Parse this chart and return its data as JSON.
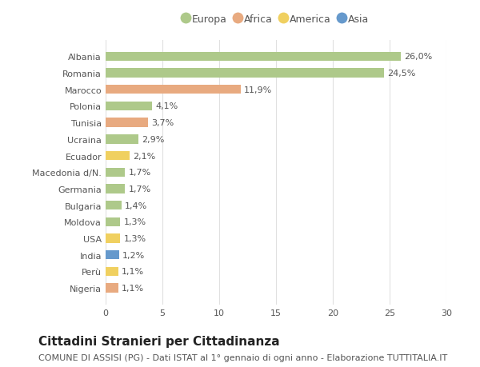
{
  "countries": [
    "Albania",
    "Romania",
    "Marocco",
    "Polonia",
    "Tunisia",
    "Ucraina",
    "Ecuador",
    "Macedonia d/N.",
    "Germania",
    "Bulgaria",
    "Moldova",
    "USA",
    "India",
    "Perù",
    "Nigeria"
  ],
  "values": [
    26.0,
    24.5,
    11.9,
    4.1,
    3.7,
    2.9,
    2.1,
    1.7,
    1.7,
    1.4,
    1.3,
    1.3,
    1.2,
    1.1,
    1.1
  ],
  "labels": [
    "26,0%",
    "24,5%",
    "11,9%",
    "4,1%",
    "3,7%",
    "2,9%",
    "2,1%",
    "1,7%",
    "1,7%",
    "1,4%",
    "1,3%",
    "1,3%",
    "1,2%",
    "1,1%",
    "1,1%"
  ],
  "continents": [
    "Europa",
    "Europa",
    "Africa",
    "Europa",
    "Africa",
    "Europa",
    "America",
    "Europa",
    "Europa",
    "Europa",
    "Europa",
    "America",
    "Asia",
    "America",
    "Africa"
  ],
  "continent_colors": {
    "Europa": "#aec98a",
    "Africa": "#e8aa80",
    "America": "#f0d060",
    "Asia": "#6699cc"
  },
  "legend_order": [
    "Europa",
    "Africa",
    "America",
    "Asia"
  ],
  "background_color": "#ffffff",
  "grid_color": "#e0e0e0",
  "xlim": [
    0,
    30
  ],
  "xticks": [
    0,
    5,
    10,
    15,
    20,
    25,
    30
  ],
  "title": "Cittadini Stranieri per Cittadinanza",
  "subtitle": "COMUNE DI ASSISI (PG) - Dati ISTAT al 1° gennaio di ogni anno - Elaborazione TUTTITALIA.IT",
  "title_fontsize": 11,
  "subtitle_fontsize": 8,
  "label_fontsize": 8,
  "tick_fontsize": 8,
  "legend_fontsize": 9,
  "bar_height": 0.55
}
